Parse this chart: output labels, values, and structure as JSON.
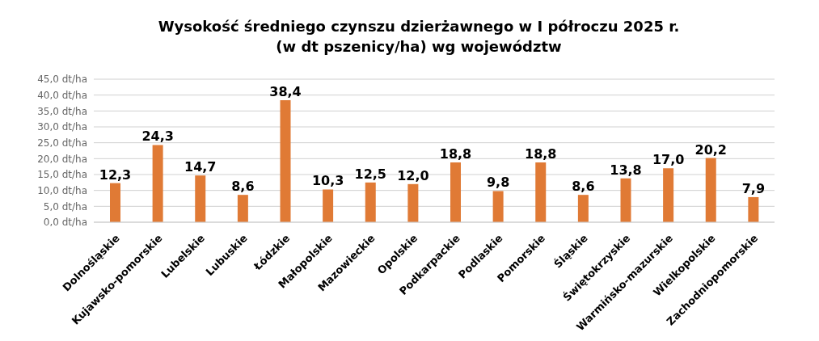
{
  "chart_data": {
    "type": "bar",
    "title": "Wysokość średniego czynszu dzierżawnego w I półroczu 2025 r.\n(w dt pszenicy/ha) wg województw",
    "categories": [
      "Dolnośląskie",
      "Kujawsko-pomorskie",
      "Lubelskie",
      "Lubuskie",
      "Łódzkie",
      "Małopolskie",
      "Mazowieckie",
      "Opolskie",
      "Podkarpackie",
      "Podlaskie",
      "Pomorskie",
      "Śląskie",
      "Świętokrzyskie",
      "Warmińsko-mazurskie",
      "Wielkopolskie",
      "Zachodniopomorskie"
    ],
    "values": [
      12.3,
      24.3,
      14.7,
      8.6,
      38.4,
      10.3,
      12.5,
      12.0,
      18.8,
      9.8,
      18.8,
      8.6,
      13.8,
      17.0,
      20.2,
      7.9
    ],
    "value_labels": [
      "12,3",
      "24,3",
      "14,7",
      "8,6",
      "38,4",
      "10,3",
      "12,5",
      "12,0",
      "18,8",
      "9,8",
      "18,8",
      "8,6",
      "13,8",
      "17,0",
      "20,2",
      "7,9"
    ],
    "color": "#e07a35",
    "ylim": [
      0,
      45
    ],
    "yticks": [
      {
        "value": 0,
        "label": "0,0 dt/ha"
      },
      {
        "value": 5,
        "label": "5,0 dt/ha"
      },
      {
        "value": 10,
        "label": "10,0 dt/ha"
      },
      {
        "value": 15,
        "label": "15,0 dt/ha"
      },
      {
        "value": 20,
        "label": "20,0 dt/ha"
      },
      {
        "value": 25,
        "label": "25,0 dt/ha"
      },
      {
        "value": 30,
        "label": "30,0 dt/ha"
      },
      {
        "value": 35,
        "label": "35,0 dt/ha"
      },
      {
        "value": 40,
        "label": "40,0 dt/ha"
      },
      {
        "value": 45,
        "label": "45,0 dt/ha"
      }
    ],
    "grid": "y"
  }
}
